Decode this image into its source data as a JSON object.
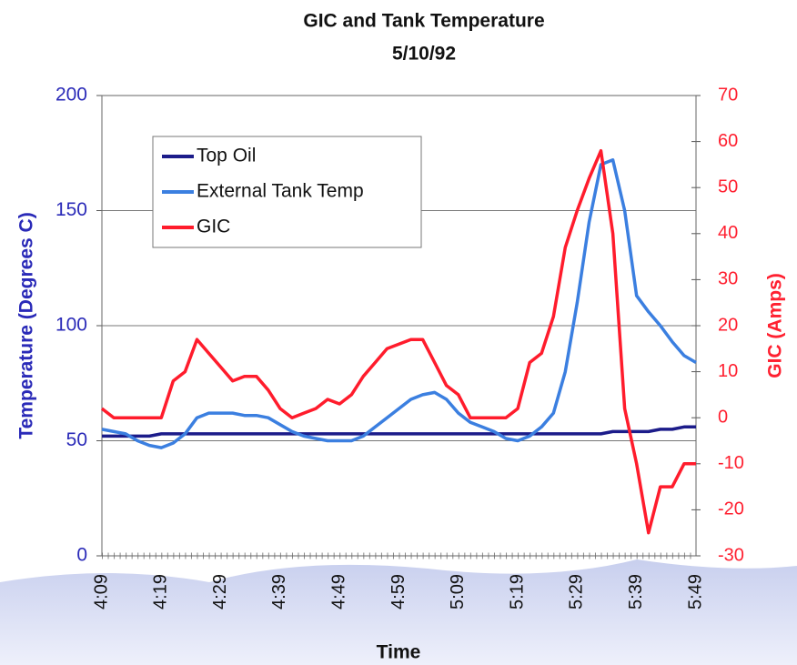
{
  "chart_data": {
    "type": "line",
    "title": "GIC and Tank Temperature",
    "subtitle": "5/10/92",
    "xlabel": "Time",
    "ylabel": "Temperature (Degrees C)",
    "y2label": "GIC (Amps)",
    "categories": [
      "4:09",
      null,
      null,
      null,
      null,
      "4:19",
      null,
      null,
      null,
      null,
      "4:29",
      null,
      null,
      null,
      null,
      "4:39",
      null,
      null,
      null,
      null,
      "4:49",
      null,
      null,
      null,
      null,
      "4:59",
      null,
      null,
      null,
      null,
      "5:09",
      null,
      null,
      null,
      null,
      "5:19",
      null,
      null,
      null,
      null,
      "5:29",
      null,
      null,
      null,
      null,
      "5:39",
      null,
      null,
      null,
      null,
      "5:49"
    ],
    "ylim": [
      0,
      200
    ],
    "yticks": [
      0,
      50,
      100,
      150,
      200
    ],
    "y2lim": [
      -30,
      70
    ],
    "y2ticks": [
      -30,
      -20,
      -10,
      0,
      10,
      20,
      30,
      40,
      50,
      60,
      70
    ],
    "grid": true,
    "legend": "upper left",
    "series": [
      {
        "name": "Top Oil",
        "color": "#1c1c8a",
        "values": [
          52,
          52,
          52,
          52,
          52,
          53,
          53,
          53,
          53,
          53,
          53,
          53,
          53,
          53,
          53,
          53,
          53,
          53,
          53,
          53,
          53,
          53,
          53,
          53,
          53,
          53,
          53,
          53,
          53,
          53,
          53,
          53,
          53,
          53,
          53,
          53,
          53,
          53,
          53,
          53,
          53,
          53,
          53,
          54,
          54,
          54,
          54,
          55,
          55,
          56,
          56
        ]
      },
      {
        "name": "External Tank Temp",
        "color": "#3b7fe0",
        "values": [
          55,
          54,
          53,
          50,
          48,
          47,
          49,
          53,
          60,
          62,
          62,
          62,
          61,
          61,
          60,
          57,
          54,
          52,
          51,
          50,
          50,
          50,
          52,
          56,
          60,
          64,
          68,
          70,
          71,
          68,
          62,
          58,
          56,
          54,
          51,
          50,
          52,
          56,
          62,
          80,
          110,
          145,
          170,
          172,
          150,
          113,
          106,
          100,
          93,
          87,
          84
        ]
      },
      {
        "name": "GIC",
        "color": "#ff1c2c",
        "axis": "y2",
        "values": [
          2,
          0,
          0,
          0,
          0,
          0,
          8,
          10,
          17,
          14,
          11,
          8,
          9,
          9,
          6,
          2,
          0,
          1,
          2,
          4,
          3,
          5,
          9,
          12,
          15,
          16,
          17,
          17,
          12,
          7,
          5,
          0,
          0,
          0,
          0,
          2,
          12,
          14,
          22,
          37,
          45,
          52,
          58,
          40,
          2,
          -10,
          -25,
          -15,
          -15,
          -10,
          -10
        ]
      }
    ]
  }
}
